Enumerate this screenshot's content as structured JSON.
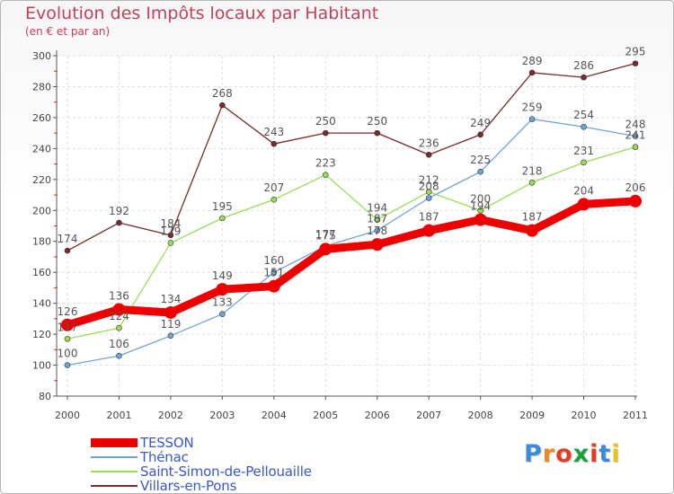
{
  "title": "Evolution des Impôts locaux par Habitant",
  "subtitle": "(en € et par an)",
  "logo": {
    "letters": [
      "P",
      "r",
      "o",
      "x",
      "i",
      "t",
      "i"
    ],
    "colors": [
      "#3d8ad7",
      "#ef8a1f",
      "#e53c25",
      "#1ea03a",
      "#e53c25",
      "#3d8ad7",
      "#e9c21a"
    ]
  },
  "chart_data": {
    "type": "line",
    "title": "Evolution des Impôts locaux par Habitant",
    "ylabel": "(en € et par an)",
    "xlabel": "",
    "categories": [
      "2000",
      "2001",
      "2002",
      "2003",
      "2004",
      "2005",
      "2006",
      "2007",
      "2008",
      "2009",
      "2010",
      "2011"
    ],
    "ylim": [
      80,
      300
    ],
    "yticks": [
      80,
      100,
      120,
      140,
      160,
      180,
      200,
      220,
      240,
      260,
      280,
      300
    ],
    "grid": true,
    "legend_position": "bottom-left",
    "series": [
      {
        "name": "TESSON",
        "color": "#ee0000",
        "values": [
          126,
          136,
          134,
          149,
          151,
          175,
          178,
          187,
          194,
          187,
          204,
          206
        ]
      },
      {
        "name": "Thénac",
        "color": "#6fa5d4",
        "values": [
          100,
          106,
          119,
          133,
          160,
          177,
          187,
          208,
          225,
          259,
          254,
          248
        ]
      },
      {
        "name": "Saint-Simon-de-Pellouaille",
        "color": "#99dd55",
        "values": [
          117,
          124,
          179,
          195,
          207,
          223,
          194,
          212,
          200,
          218,
          231,
          241
        ]
      },
      {
        "name": "Villars-en-Pons",
        "color": "#7a2a2a",
        "values": [
          174,
          192,
          184,
          268,
          243,
          250,
          250,
          236,
          249,
          289,
          286,
          295
        ]
      }
    ]
  }
}
